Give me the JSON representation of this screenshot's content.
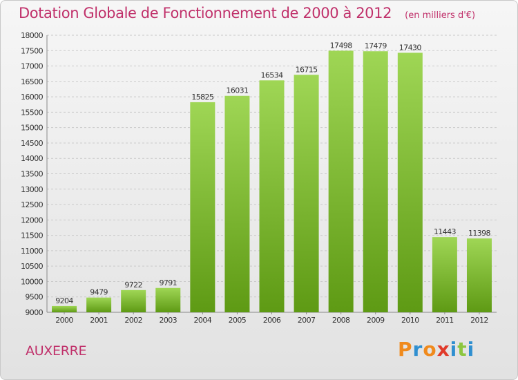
{
  "header": {
    "title": "Dotation Globale de Fonctionnement de 2000 à 2012",
    "subtitle": "(en milliers d'€)"
  },
  "footer": {
    "city": "AUXERRE",
    "logo_text": "Proxiti"
  },
  "colors": {
    "title": "#c0306a",
    "bar_light": "#9fd655",
    "bar_dark": "#5e9a14",
    "logo": [
      "#f08a1c",
      "#2f8fd0",
      "#f08a1c",
      "#e03a2a",
      "#2f8fd0",
      "#8cc63f",
      "#2f8fd0"
    ]
  },
  "chart_data": {
    "type": "bar",
    "title": "Dotation Globale de Fonctionnement de 2000 à 2012",
    "subtitle": "(en milliers d'€)",
    "categories": [
      "2000",
      "2001",
      "2002",
      "2003",
      "2004",
      "2005",
      "2006",
      "2007",
      "2008",
      "2009",
      "2010",
      "2011",
      "2012"
    ],
    "values": [
      9204,
      9479,
      9722,
      9791,
      15825,
      16031,
      16534,
      16715,
      17498,
      17479,
      17430,
      11443,
      11398
    ],
    "ylim": [
      9000,
      18000
    ],
    "yticks": [
      9000,
      9500,
      10000,
      10500,
      11000,
      11500,
      12000,
      12500,
      13000,
      13500,
      14000,
      14500,
      15000,
      15500,
      16000,
      16500,
      17000,
      17500,
      18000
    ],
    "grid": true,
    "data_labels": true
  }
}
